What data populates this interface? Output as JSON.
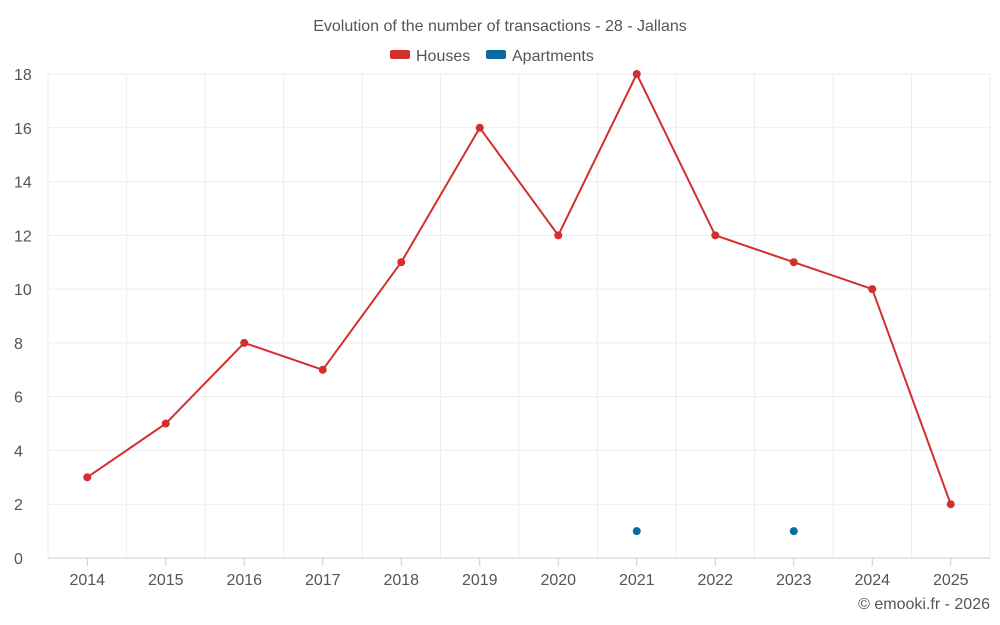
{
  "chart_data": {
    "type": "line",
    "title": "Evolution of the number of transactions - 28 - Jallans",
    "categories": [
      "2014",
      "2015",
      "2016",
      "2017",
      "2018",
      "2019",
      "2020",
      "2021",
      "2022",
      "2023",
      "2024",
      "2025"
    ],
    "ylim": [
      0,
      18
    ],
    "yticks": [
      0,
      2,
      4,
      6,
      8,
      10,
      12,
      14,
      16,
      18
    ],
    "grid": true,
    "legend_position": "top-center",
    "series": [
      {
        "name": "Houses",
        "color": "#d32f2f",
        "values": [
          3,
          5,
          8,
          7,
          11,
          16,
          12,
          18,
          12,
          11,
          10,
          2
        ]
      },
      {
        "name": "Apartments",
        "color": "#0b6ba0",
        "values": [
          null,
          null,
          null,
          null,
          null,
          null,
          null,
          1,
          null,
          1,
          null,
          null
        ]
      }
    ]
  },
  "credit": "© emooki.fr - 2026"
}
